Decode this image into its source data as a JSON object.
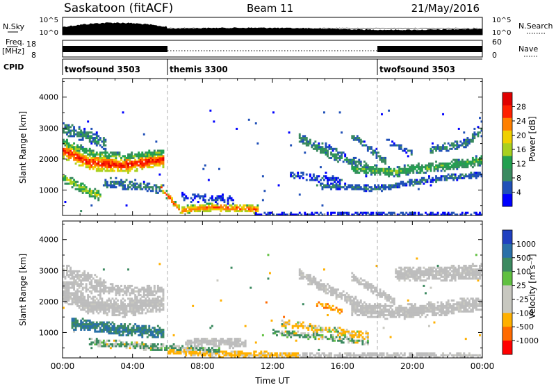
{
  "header": {
    "station": "Saskatoon (fitACF)",
    "beam": "Beam 11",
    "date": "21/May/2016"
  },
  "panels": {
    "nsky": {
      "label": "N.Sky",
      "right_label": "N.Search",
      "left_ticks": [
        "10^5",
        "10^0"
      ],
      "right_ticks": [
        "10^5",
        "10^0"
      ]
    },
    "freq": {
      "label_line1": "Freq.",
      "label_line2": "[MHz]",
      "right_label": "Nave",
      "left_ticks": [
        "18",
        "8"
      ],
      "right_ticks": [
        "60",
        "0"
      ]
    },
    "cpid": {
      "label": "CPID",
      "segments": [
        {
          "name": "twofsound 3503",
          "start_hour": 0,
          "end_hour": 6
        },
        {
          "name": "themis 3300",
          "start_hour": 6,
          "end_hour": 18
        },
        {
          "name": "twofsound 3503",
          "start_hour": 18,
          "end_hour": 24
        }
      ]
    }
  },
  "colors": {
    "power": [
      "#0000ff",
      "#2050b8",
      "#3a8a60",
      "#22a050",
      "#a8d020",
      "#f0d000",
      "#ff8000",
      "#ff2000",
      "#e00000"
    ],
    "velocity": [
      "#2040c0",
      "#2a70a8",
      "#3c8a60",
      "#60c040",
      "#c8c8c0",
      "#c8c8c0",
      "#ffb000",
      "#ff6a00",
      "#ff0000"
    ],
    "ground": "#bdbdbd"
  },
  "chart_data": [
    {
      "type": "heatmap",
      "name": "power",
      "ylabel": "Slant Range [km]",
      "xlabel": "",
      "yticks": [
        1000,
        2000,
        3000,
        4000
      ],
      "ylim": [
        180,
        4600
      ],
      "xlim": [
        0,
        24
      ],
      "colorbar": {
        "label": "Power [dB]",
        "range": [
          0,
          32
        ],
        "ticks": [
          "4",
          "8",
          "12",
          "16",
          "20",
          "24",
          "28"
        ]
      },
      "bands": [
        {
          "t0": 0.0,
          "t1": 5.8,
          "r": [
            [
              0,
              2300
            ],
            [
              1.5,
              1900
            ],
            [
              3.5,
              1800
            ],
            [
              5.8,
              2000
            ]
          ],
          "w": 260,
          "level": 26,
          "d": 0.9
        },
        {
          "t0": 0.0,
          "t1": 5.8,
          "r": [
            [
              0,
              2550
            ],
            [
              1.5,
              2200
            ],
            [
              3.5,
              2050
            ],
            [
              5.8,
              2200
            ]
          ],
          "w": 150,
          "level": 15,
          "d": 0.65
        },
        {
          "t0": 0.0,
          "t1": 2.5,
          "r": [
            [
              0,
              3000
            ],
            [
              1.2,
              2800
            ],
            [
              2.5,
              2500
            ]
          ],
          "w": 220,
          "level": 10,
          "d": 0.6
        },
        {
          "t0": 0.0,
          "t1": 2.2,
          "r": [
            [
              0,
              1400
            ],
            [
              1.0,
              1100
            ],
            [
              2.2,
              800
            ]
          ],
          "w": 170,
          "level": 17,
          "d": 0.7
        },
        {
          "t0": 2.3,
          "t1": 5.8,
          "r": [
            [
              2.3,
              1250
            ],
            [
              4.2,
              1150
            ],
            [
              5.8,
              1000
            ]
          ],
          "w": 180,
          "level": 10,
          "d": 0.5
        },
        {
          "t0": 5.6,
          "t1": 11.2,
          "r": [
            [
              5.6,
              1100
            ],
            [
              6.7,
              350
            ],
            [
              8.5,
              450
            ],
            [
              11.2,
              380
            ]
          ],
          "w": 130,
          "level": 24,
          "d": 0.85
        },
        {
          "t0": 6.8,
          "t1": 9.8,
          "r": [
            [
              6.8,
              800
            ],
            [
              8.5,
              700
            ],
            [
              9.8,
              650
            ]
          ],
          "w": 150,
          "level": 6,
          "d": 0.3
        },
        {
          "t0": 11.0,
          "t1": 24.0,
          "r": [
            [
              11,
              230
            ],
            [
              24,
              230
            ]
          ],
          "w": 70,
          "level": 5,
          "d": 0.35
        },
        {
          "t0": 14.5,
          "t1": 24.0,
          "r": [
            [
              14.5,
              1150
            ],
            [
              18,
              1050
            ],
            [
              21,
              1350
            ],
            [
              24,
              1500
            ]
          ],
          "w": 110,
          "level": 8,
          "d": 0.55
        },
        {
          "t0": 16.5,
          "t1": 24.0,
          "r": [
            [
              16.5,
              1700
            ],
            [
              19,
              1600
            ],
            [
              22,
              1800
            ],
            [
              24,
              1950
            ]
          ],
          "w": 170,
          "level": 14,
          "d": 0.7
        },
        {
          "t0": 13.5,
          "t1": 17.5,
          "r": [
            [
              13.5,
              2700
            ],
            [
              15.5,
              2100
            ],
            [
              17.5,
              1750
            ]
          ],
          "w": 160,
          "level": 11,
          "d": 0.55
        },
        {
          "t0": 16.5,
          "t1": 18.5,
          "r": [
            [
              16.5,
              2800
            ],
            [
              18.5,
              1900
            ]
          ],
          "w": 120,
          "level": 10,
          "d": 0.5
        },
        {
          "t0": 14.8,
          "t1": 16.2,
          "r": [
            [
              14.8,
              2500
            ],
            [
              16.2,
              2100
            ]
          ],
          "w": 100,
          "level": 8,
          "d": 0.45
        },
        {
          "t0": 18.5,
          "t1": 20.0,
          "r": [
            [
              18.5,
              2600
            ],
            [
              20,
              2200
            ]
          ],
          "w": 90,
          "level": 8,
          "d": 0.4
        },
        {
          "t0": 21.0,
          "t1": 24.0,
          "r": [
            [
              21,
              2300
            ],
            [
              23,
              2500
            ],
            [
              24,
              2900
            ]
          ],
          "w": 150,
          "level": 10,
          "d": 0.5
        },
        {
          "t0": 13.0,
          "t1": 16.0,
          "r": [
            [
              13,
              1500
            ],
            [
              16,
              1300
            ]
          ],
          "w": 120,
          "level": 7,
          "d": 0.35
        }
      ]
    },
    {
      "type": "heatmap",
      "name": "velocity",
      "ylabel": "Slant Range [km]",
      "xlabel": "Time UT",
      "yticks": [
        1000,
        2000,
        3000,
        4000
      ],
      "ylim": [
        180,
        4600
      ],
      "xlim": [
        0,
        24
      ],
      "xticks": [
        "00:00",
        "04:00",
        "08:00",
        "12:00",
        "16:00",
        "20:00",
        "00:00"
      ],
      "colorbar": {
        "label": "Velocity [m s⁻¹]",
        "ticks": [
          "1000",
          "500",
          "100",
          "25",
          "-25",
          "-100",
          "-500",
          "-1000"
        ]
      },
      "bands": [
        {
          "t0": 0.0,
          "t1": 5.8,
          "r": [
            [
              0,
              2300
            ],
            [
              1.5,
              1900
            ],
            [
              3.5,
              1800
            ],
            [
              5.8,
              2000
            ]
          ],
          "w": 300,
          "v": 0,
          "g": true,
          "d": 0.9
        },
        {
          "t0": 0.0,
          "t1": 5.8,
          "r": [
            [
              0,
              2600
            ],
            [
              2,
              2400
            ],
            [
              5.8,
              2300
            ]
          ],
          "w": 200,
          "v": 0,
          "g": true,
          "d": 0.5
        },
        {
          "t0": 0.0,
          "t1": 2.5,
          "r": [
            [
              0,
              3000
            ],
            [
              1.2,
              2800
            ],
            [
              2.5,
              2500
            ]
          ],
          "w": 220,
          "v": 0,
          "g": true,
          "d": 0.55
        },
        {
          "t0": 0.5,
          "t1": 5.8,
          "r": [
            [
              0.5,
              1300
            ],
            [
              2.5,
              1150
            ],
            [
              5.8,
              1000
            ]
          ],
          "w": 200,
          "v": 300,
          "g": false,
          "d": 0.75
        },
        {
          "t0": 1.5,
          "t1": 9.0,
          "r": [
            [
              1.5,
              700
            ],
            [
              5,
              550
            ],
            [
              9,
              420
            ]
          ],
          "w": 120,
          "v": 80,
          "g": false,
          "d": 0.6
        },
        {
          "t0": 6.0,
          "t1": 13.5,
          "r": [
            [
              6,
              400
            ],
            [
              9,
              300
            ],
            [
              13.5,
              260
            ]
          ],
          "w": 110,
          "v": -120,
          "g": false,
          "d": 0.7
        },
        {
          "t0": 7.0,
          "t1": 10.5,
          "r": [
            [
              7,
              700
            ],
            [
              10.5,
              650
            ]
          ],
          "w": 160,
          "v": 0,
          "g": true,
          "d": 0.7
        },
        {
          "t0": 13.0,
          "t1": 24.0,
          "r": [
            [
              13,
              280
            ],
            [
              24,
              260
            ]
          ],
          "w": 90,
          "v": 0,
          "g": true,
          "d": 0.5
        },
        {
          "t0": 12.5,
          "t1": 17.5,
          "r": [
            [
              12.5,
              1300
            ],
            [
              15,
              1100
            ],
            [
              17.5,
              900
            ]
          ],
          "w": 130,
          "v": -80,
          "g": false,
          "d": 0.45
        },
        {
          "t0": 12.0,
          "t1": 17.5,
          "r": [
            [
              12,
              1000
            ],
            [
              14,
              900
            ],
            [
              17.5,
              700
            ]
          ],
          "w": 110,
          "v": 60,
          "g": false,
          "d": 0.4
        },
        {
          "t0": 13.5,
          "t1": 17.5,
          "r": [
            [
              13.5,
              2900
            ],
            [
              15.5,
              2300
            ],
            [
              17.5,
              1800
            ]
          ],
          "w": 170,
          "v": 0,
          "g": true,
          "d": 0.75
        },
        {
          "t0": 16.5,
          "t1": 24.0,
          "r": [
            [
              16.5,
              1800
            ],
            [
              19,
              1650
            ],
            [
              22,
              1800
            ],
            [
              24,
              1950
            ]
          ],
          "w": 240,
          "v": 0,
          "g": true,
          "d": 0.85
        },
        {
          "t0": 19.0,
          "t1": 24.0,
          "r": [
            [
              19,
              2900
            ],
            [
              22,
              2900
            ],
            [
              24,
              3000
            ]
          ],
          "w": 250,
          "v": 0,
          "g": true,
          "d": 0.75
        },
        {
          "t0": 16.5,
          "t1": 19.0,
          "r": [
            [
              16.5,
              2800
            ],
            [
              19,
              2000
            ]
          ],
          "w": 140,
          "v": 0,
          "g": true,
          "d": 0.6
        },
        {
          "t0": 14.5,
          "t1": 16.0,
          "r": [
            [
              14.5,
              1900
            ],
            [
              16,
              1700
            ]
          ],
          "w": 110,
          "v": -250,
          "g": false,
          "d": 0.45
        }
      ]
    }
  ]
}
